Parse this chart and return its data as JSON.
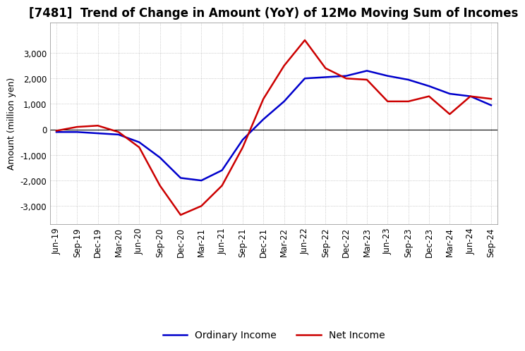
{
  "title": "[7481]  Trend of Change in Amount (YoY) of 12Mo Moving Sum of Incomes",
  "ylabel": "Amount (million yen)",
  "x_labels": [
    "Jun-19",
    "Sep-19",
    "Dec-19",
    "Mar-20",
    "Jun-20",
    "Sep-20",
    "Dec-20",
    "Mar-21",
    "Jun-21",
    "Sep-21",
    "Dec-21",
    "Mar-22",
    "Jun-22",
    "Sep-22",
    "Dec-22",
    "Mar-23",
    "Jun-23",
    "Sep-23",
    "Dec-23",
    "Mar-24",
    "Jun-24",
    "Sep-24"
  ],
  "ordinary_income": [
    -100,
    -100,
    -150,
    -200,
    -500,
    -1100,
    -1900,
    -2000,
    -1600,
    -400,
    400,
    1100,
    2000,
    2050,
    2100,
    2300,
    2100,
    1950,
    1700,
    1400,
    1300,
    950
  ],
  "net_income": [
    -50,
    100,
    150,
    -100,
    -700,
    -2200,
    -3350,
    -3000,
    -2200,
    -700,
    1200,
    2500,
    3500,
    2400,
    2000,
    1950,
    1100,
    1100,
    1300,
    600,
    1300,
    1200
  ],
  "ordinary_income_color": "#0000cc",
  "net_income_color": "#cc0000",
  "line_width": 1.8,
  "ylim": [
    -3700,
    4200
  ],
  "yticks": [
    -3000,
    -2000,
    -1000,
    0,
    1000,
    2000,
    3000
  ],
  "background_color": "#ffffff",
  "grid_color": "#aaaaaa",
  "title_fontsize": 12,
  "axis_fontsize": 8.5,
  "ylabel_fontsize": 9,
  "legend_fontsize": 10
}
